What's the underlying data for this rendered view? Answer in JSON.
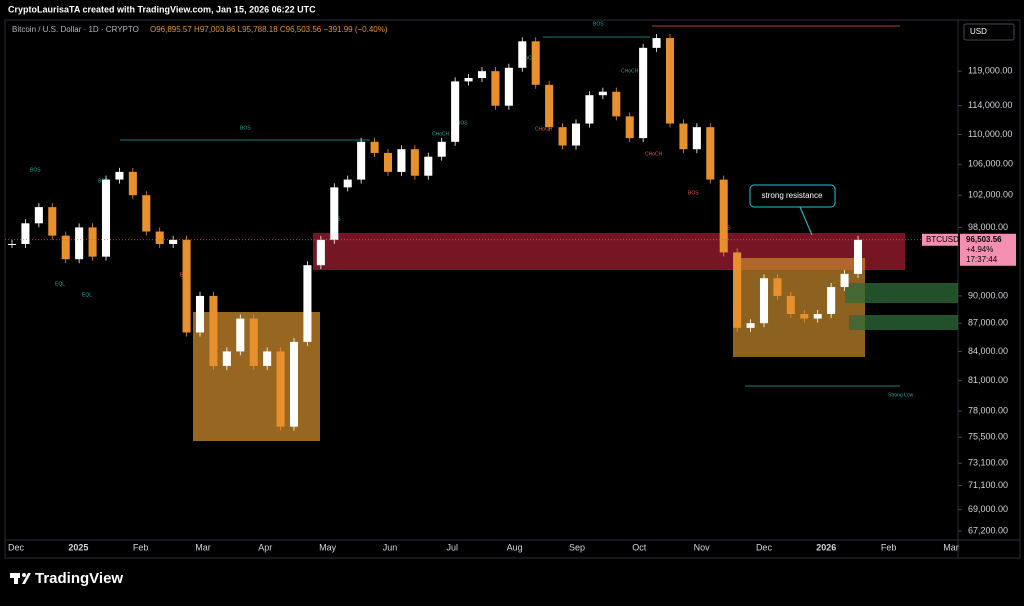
{
  "header": {
    "credit": "CryptoLaurisaTA created with TradingView.com, Jan 15, 2026 06:22 UTC"
  },
  "chart_data": {
    "type": "candlestick",
    "symbol_line": "Bitcoin / U.S. Dollar · 1D · CRYPTO",
    "ohlc_line": "O96,895.57 H97,003.86 L95,788.18 C96,503.56 −391.99 (−0.40%)",
    "currency": "USD",
    "log_scale": true,
    "up_color": "#ffffff",
    "down_color": "#e8902e",
    "values": [
      96000,
      98500,
      100500,
      97000,
      94200,
      98000,
      94500,
      104000,
      105000,
      102000,
      97500,
      96000,
      96500,
      86000,
      90000,
      82500,
      84000,
      87500,
      82500,
      84000,
      76500,
      85000,
      93500,
      96500,
      103000,
      104000,
      109000,
      107500,
      105000,
      108000,
      104500,
      107000,
      109000,
      117500,
      118000,
      119000,
      114000,
      119500,
      123500,
      117000,
      111000,
      108500,
      111500,
      115500,
      116000,
      112500,
      109500,
      122500,
      124000,
      111500,
      108000,
      111000,
      104000,
      95000,
      86500,
      87000,
      92000,
      90000,
      88000,
      87500,
      88000,
      91000,
      92500,
      96503.56
    ],
    "ylim": [
      66450,
      126500
    ],
    "yticks": [
      {
        "value": 67200,
        "label": "67,200.00"
      },
      {
        "value": 69000,
        "label": "69,000.00"
      },
      {
        "value": 71100,
        "label": "71,100.00"
      },
      {
        "value": 73100,
        "label": "73,100.00"
      },
      {
        "value": 75500,
        "label": "75,500.00"
      },
      {
        "value": 78000,
        "label": "78,000.00"
      },
      {
        "value": 81000,
        "label": "81,000.00"
      },
      {
        "value": 84000,
        "label": "84,000.00"
      },
      {
        "value": 87000,
        "label": "87,000.00"
      },
      {
        "value": 90000,
        "label": "90,000.00"
      },
      {
        "value": 98000,
        "label": "98,000.00"
      },
      {
        "value": 102000,
        "label": "102,000.00"
      },
      {
        "value": 106000,
        "label": "106,000.00"
      },
      {
        "value": 110000,
        "label": "110,000.00"
      },
      {
        "value": 114000,
        "label": "114,000.00"
      },
      {
        "value": 119000,
        "label": "119,000.00"
      }
    ],
    "x_labels": [
      "Dec",
      "2025",
      "Feb",
      "Mar",
      "Apr",
      "May",
      "Jun",
      "Jul",
      "Aug",
      "Sep",
      "Oct",
      "Nov",
      "Dec",
      "2026",
      "Feb",
      "Mar"
    ],
    "last_price": {
      "value": 96503.56,
      "label": "96,503.56"
    },
    "price_tag": {
      "symbol": "BTCUSD",
      "change": "+4.94%",
      "countdown": "17:37:44"
    },
    "annotations": {
      "strong_resistance": "strong resistance",
      "strong_low": "Strong Low",
      "bos": "BOS",
      "choch": "CHoCH",
      "eql": "EQL"
    }
  },
  "footer": {
    "brand": "TradingView"
  }
}
